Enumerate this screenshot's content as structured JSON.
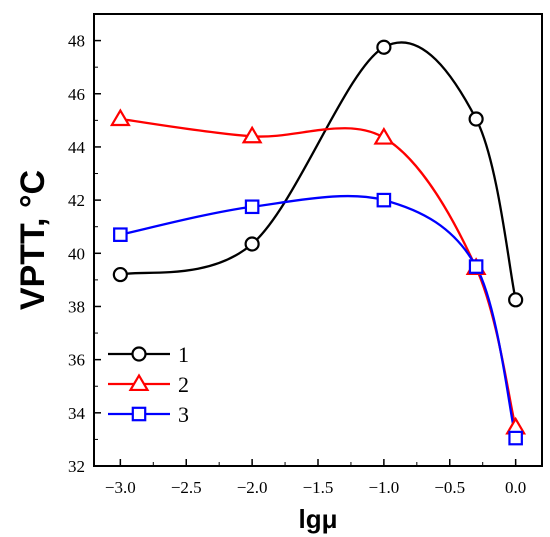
{
  "chart_data": {
    "type": "line",
    "xlabel": "lgμ",
    "ylabel": "VPTT, °C",
    "xlim": [
      -3.2,
      0.2
    ],
    "ylim": [
      32,
      49
    ],
    "x_ticks": [
      "-3.0",
      "-2.5",
      "-2.0",
      "-1.5",
      "-1.0",
      "-0.5",
      "0.0"
    ],
    "y_ticks": [
      "32",
      "34",
      "36",
      "38",
      "40",
      "42",
      "44",
      "46",
      "48"
    ],
    "grid": false,
    "legend_position": "lower-left",
    "series": [
      {
        "name": "1",
        "color": "#000000",
        "marker": "circle",
        "x": [
          -3.0,
          -2.0,
          -1.0,
          -0.3,
          0.0
        ],
        "y": [
          39.2,
          40.35,
          47.75,
          45.05,
          38.25
        ]
      },
      {
        "name": "2",
        "color": "#ff0000",
        "marker": "triangle",
        "x": [
          -3.0,
          -2.0,
          -1.0,
          -0.3,
          0.0
        ],
        "y": [
          45.05,
          44.4,
          44.35,
          39.45,
          33.45
        ]
      },
      {
        "name": "3",
        "color": "#0000ff",
        "marker": "square",
        "x": [
          -3.0,
          -2.0,
          -1.0,
          -0.3,
          0.0
        ],
        "y": [
          40.7,
          41.75,
          42.0,
          39.5,
          33.05
        ]
      }
    ]
  }
}
